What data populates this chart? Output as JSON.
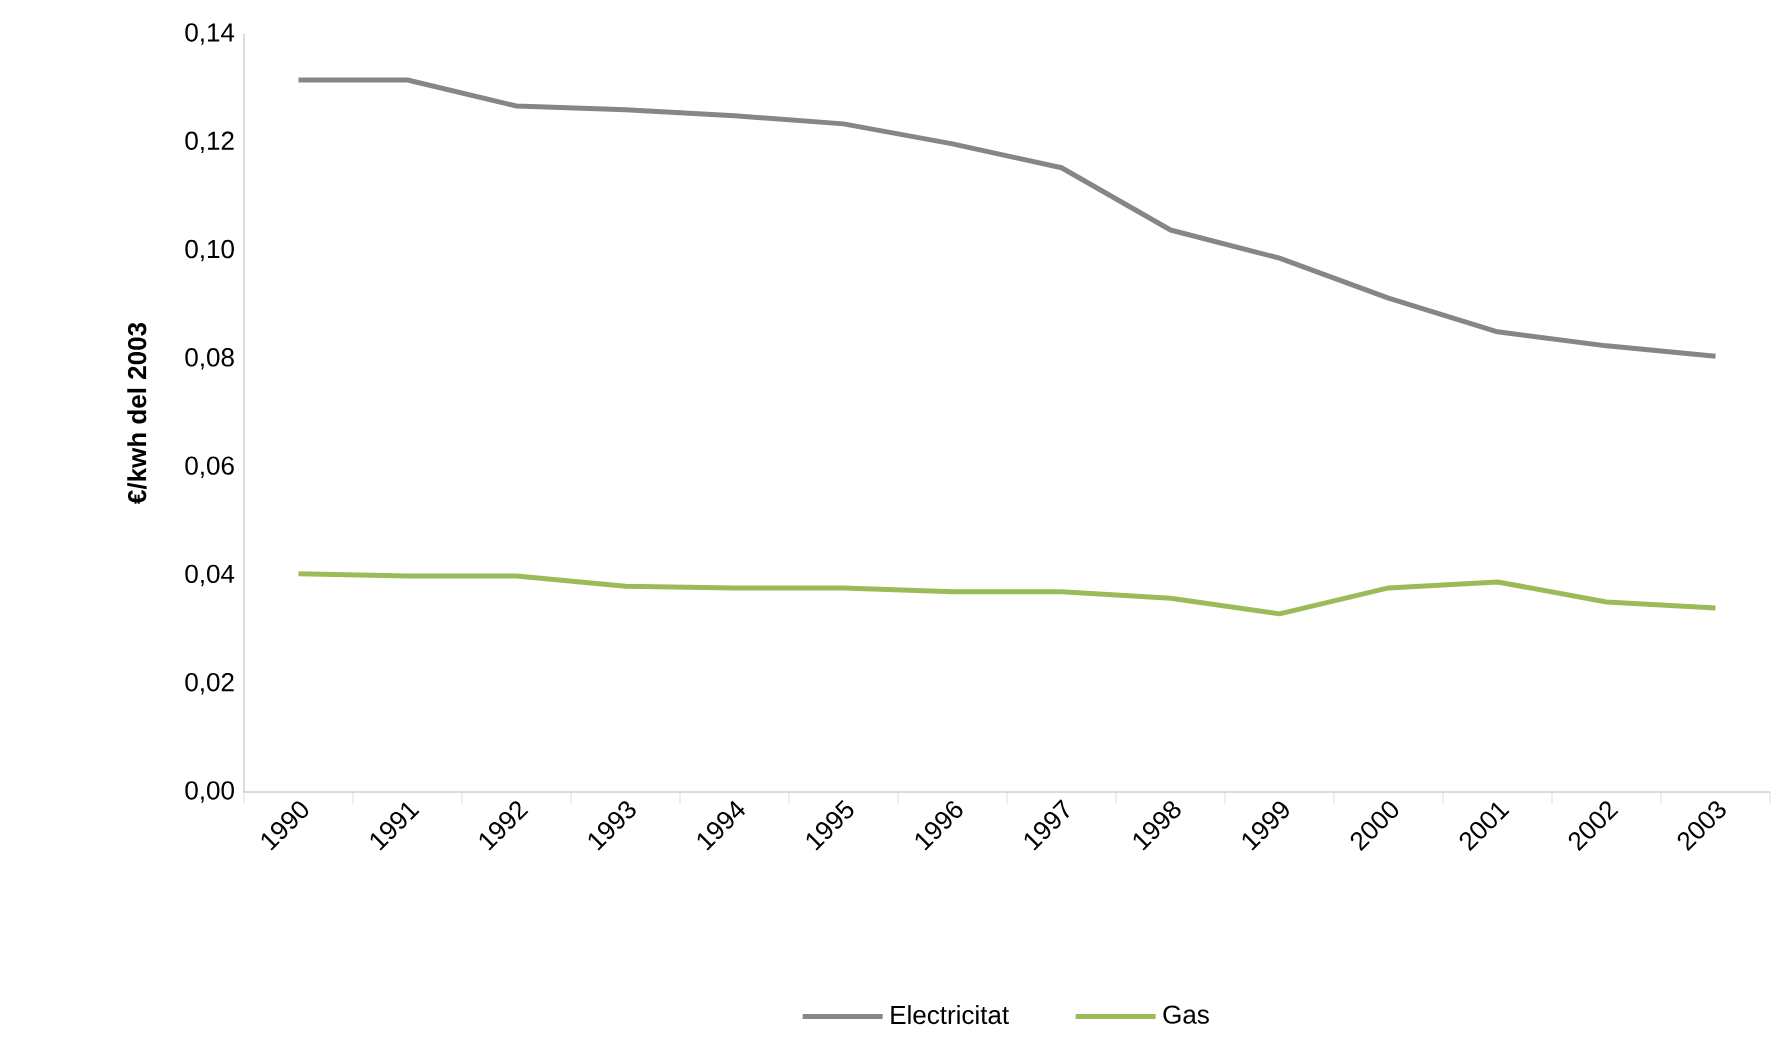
{
  "chart_data": {
    "type": "line",
    "ylabel": "€/kwh del 2003",
    "categories": [
      "1990",
      "1991",
      "1992",
      "1993",
      "1994",
      "1995",
      "1996",
      "1997",
      "1998",
      "1999",
      "2000",
      "2001",
      "2002",
      "2003"
    ],
    "series": [
      {
        "name": "Electricitat",
        "color": "#868686",
        "values": [
          0.1315,
          0.1315,
          0.1267,
          0.126,
          0.1249,
          0.1234,
          0.1197,
          0.1153,
          0.1038,
          0.0986,
          0.0912,
          0.085,
          0.0824,
          0.0805
        ]
      },
      {
        "name": "Gas",
        "color": "#9bbb59",
        "values": [
          0.0403,
          0.0399,
          0.0399,
          0.038,
          0.0377,
          0.0377,
          0.037,
          0.037,
          0.0358,
          0.0329,
          0.0377,
          0.0388,
          0.0351,
          0.034
        ]
      }
    ],
    "ylim": [
      0,
      0.14
    ],
    "yticks": [
      {
        "value": 0,
        "label": "0,00"
      },
      {
        "value": 0.02,
        "label": "0,02"
      },
      {
        "value": 0.04,
        "label": "0,04"
      },
      {
        "value": 0.06,
        "label": "0,06"
      },
      {
        "value": 0.08,
        "label": "0,08"
      },
      {
        "value": 0.1,
        "label": "0,10"
      },
      {
        "value": 0.12,
        "label": "0,12"
      },
      {
        "value": 0.14,
        "label": "0,14"
      }
    ],
    "grid": false,
    "legend": "bottom",
    "marker": "none",
    "line_style": "solid"
  }
}
